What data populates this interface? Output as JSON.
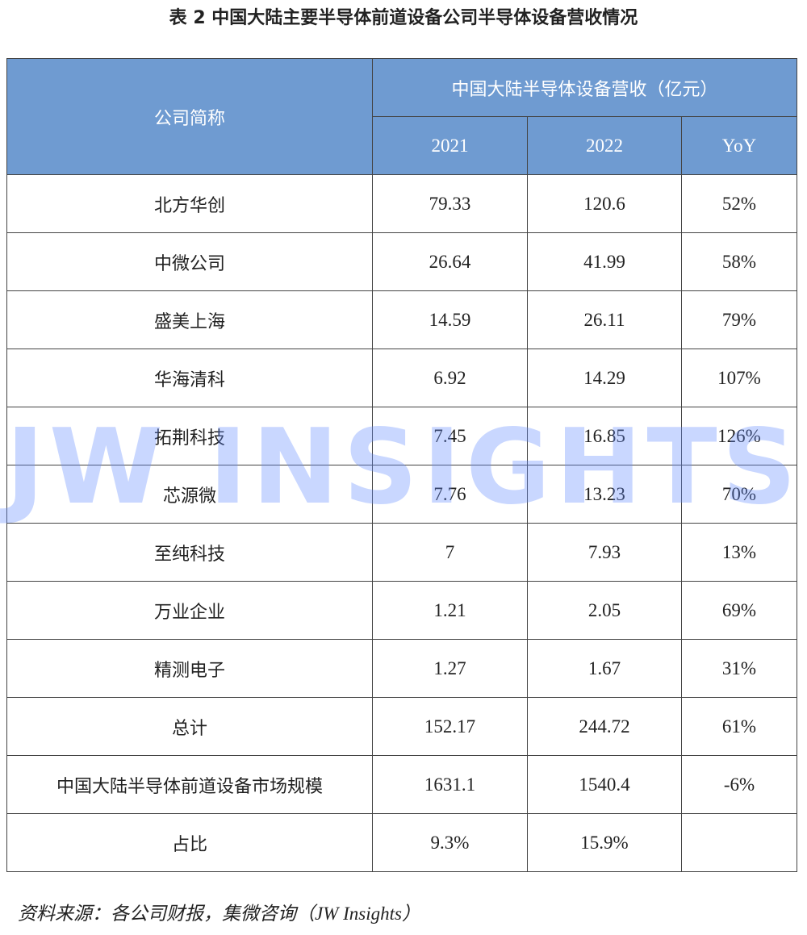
{
  "title": "表 2  中国大陆主要半导体前道设备公司半导体设备营收情况",
  "table": {
    "header": {
      "company": "公司简称",
      "group": "中国大陆半导体设备营收（亿元）",
      "columns": [
        "2021",
        "2022",
        "YoY"
      ]
    },
    "rows": [
      [
        "北方华创",
        "79.33",
        "120.6",
        "52%"
      ],
      [
        "中微公司",
        "26.64",
        "41.99",
        "58%"
      ],
      [
        "盛美上海",
        "14.59",
        "26.11",
        "79%"
      ],
      [
        "华海清科",
        "6.92",
        "14.29",
        "107%"
      ],
      [
        "拓荆科技",
        "7.45",
        "16.85",
        "126%"
      ],
      [
        "芯源微",
        "7.76",
        "13.23",
        "70%"
      ],
      [
        "至纯科技",
        "7",
        "7.93",
        "13%"
      ],
      [
        "万业企业",
        "1.21",
        "2.05",
        "69%"
      ],
      [
        "精测电子",
        "1.27",
        "1.67",
        "31%"
      ],
      [
        "总计",
        "152.17",
        "244.72",
        "61%"
      ],
      [
        "中国大陆半导体前道设备市场规模",
        "1631.1",
        "1540.4",
        "-6%"
      ],
      [
        "占比",
        "9.3%",
        "15.9%"
      ]
    ]
  },
  "watermark": "JW INSIGHTS",
  "source": "资料来源：各公司财报，集微咨询（JW Insights）"
}
